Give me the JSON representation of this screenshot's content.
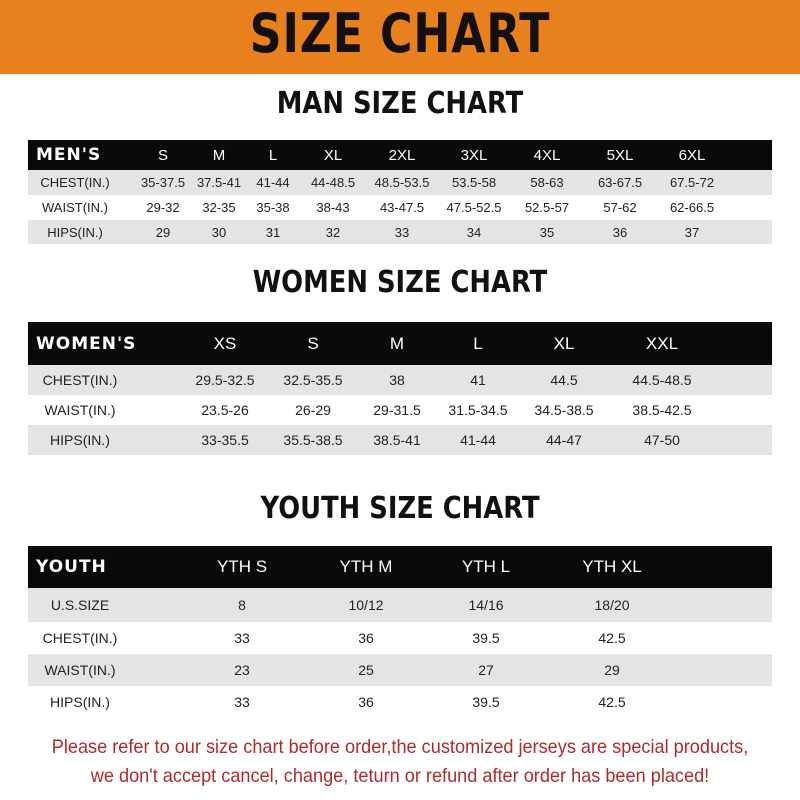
{
  "banner": {
    "title": "SIZE CHART",
    "color": "#e8801e"
  },
  "men": {
    "title": "MAN SIZE CHART",
    "header": [
      "MEN'S",
      "S",
      "M",
      "L",
      "XL",
      "2XL",
      "3XL",
      "4XL",
      "5XL",
      "6XL"
    ],
    "rows": [
      [
        "CHEST(IN.)",
        "35-37.5",
        "37.5-41",
        "41-44",
        "44-48.5",
        "48.5-53.5",
        "53.5-58",
        "58-63",
        "63-67.5",
        "67.5-72"
      ],
      [
        "WAIST(IN.)",
        "29-32",
        "32-35",
        "35-38",
        "38-43",
        "43-47.5",
        "47.5-52.5",
        "52.5-57",
        "57-62",
        "62-66.5"
      ],
      [
        "HIPS(IN.)",
        "29",
        "30",
        "31",
        "32",
        "33",
        "34",
        "35",
        "36",
        "37"
      ]
    ]
  },
  "women": {
    "title": "WOMEN SIZE CHART",
    "header": [
      "WOMEN'S",
      "XS",
      "S",
      "M",
      "L",
      "XL",
      "XXL"
    ],
    "rows": [
      [
        "CHEST(IN.)",
        "29.5-32.5",
        "32.5-35.5",
        "38",
        "41",
        "44.5",
        "44.5-48.5"
      ],
      [
        "WAIST(IN.)",
        "23.5-26",
        "26-29",
        "29-31.5",
        "31.5-34.5",
        "34.5-38.5",
        "38.5-42.5"
      ],
      [
        "HIPS(IN.)",
        "33-35.5",
        "35.5-38.5",
        "38.5-41",
        "41-44",
        "44-47",
        "47-50"
      ]
    ]
  },
  "youth": {
    "title": "YOUTH SIZE CHART",
    "header": [
      "YOUTH",
      "YTH S",
      "YTH M",
      "YTH L",
      "YTH XL"
    ],
    "rows": [
      [
        "U.S.SIZE",
        "8",
        "10/12",
        "14/16",
        "18/20"
      ],
      [
        "CHEST(IN.)",
        "33",
        "36",
        "39.5",
        "42.5"
      ],
      [
        "WAIST(IN.)",
        "23",
        "25",
        "27",
        "29"
      ],
      [
        "HIPS(IN.)",
        "33",
        "36",
        "39.5",
        "42.5"
      ]
    ]
  },
  "footer": {
    "line1": "Please refer to our size chart before order,the customized jerseys are special products,",
    "line2": "we don't accept cancel, change, teturn or refund after order has been placed!",
    "color": "#b02a2a"
  }
}
